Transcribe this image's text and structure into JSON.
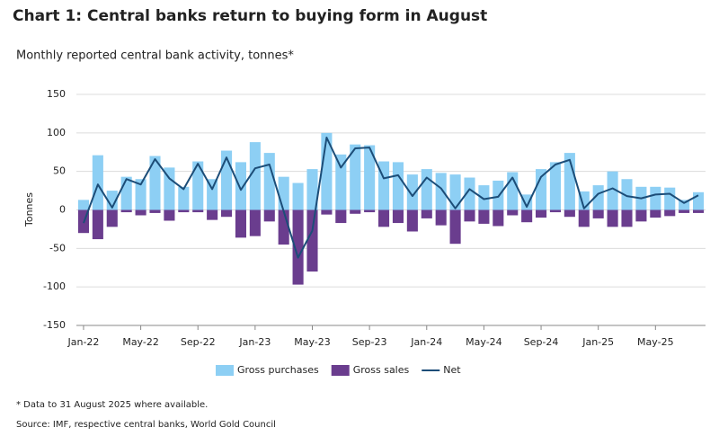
{
  "chart_data": {
    "type": "bar",
    "title": "Chart 1: Central banks return to buying form in August",
    "subtitle": "Monthly reported central bank activity, tonnes*",
    "y_label": "Tonnes",
    "notes": [
      "* Data to 31 August 2025 where available.",
      "Source: IMF, respective central banks, World Gold Council"
    ],
    "categories": [
      "Jan-22",
      null,
      null,
      null,
      "May-22",
      null,
      null,
      null,
      "Sep-22",
      null,
      null,
      null,
      "Jan-23",
      null,
      null,
      null,
      "May-23",
      null,
      null,
      null,
      "Sep-23",
      null,
      null,
      null,
      "Jan-24",
      null,
      null,
      null,
      "May-24",
      null,
      null,
      null,
      "Sep-24",
      null,
      null,
      null,
      "Jan-25",
      null,
      null,
      null,
      "May-25",
      null,
      null,
      null
    ],
    "series": [
      {
        "name": "Gross purchases",
        "color": "#8dcff4",
        "values": [
          13,
          71,
          25,
          43,
          40,
          70,
          55,
          30,
          63,
          40,
          77,
          62,
          88,
          74,
          43,
          35,
          53,
          100,
          72,
          85,
          84,
          63,
          62,
          46,
          53,
          48,
          46,
          42,
          32,
          38,
          49,
          20,
          53,
          62,
          74,
          24,
          32,
          50,
          40,
          30,
          30,
          29,
          13,
          23
        ]
      },
      {
        "name": "Gross sales",
        "color": "#6a3d8e",
        "values": [
          -30,
          -38,
          -22,
          -3,
          -7,
          -4,
          -14,
          -3,
          -3,
          -13,
          -9,
          -36,
          -34,
          -15,
          -45,
          -97,
          -80,
          -6,
          -17,
          -5,
          -3,
          -22,
          -17,
          -28,
          -11,
          -20,
          -44,
          -15,
          -18,
          -21,
          -7,
          -16,
          -10,
          -3,
          -9,
          -22,
          -11,
          -22,
          -22,
          -15,
          -10,
          -8,
          -4,
          -4
        ]
      },
      {
        "name": "Net",
        "color": "#1c4d78",
        "values": [
          -17,
          33,
          3,
          40,
          33,
          66,
          41,
          27,
          60,
          27,
          68,
          26,
          54,
          59,
          -2,
          -62,
          -27,
          94,
          55,
          80,
          81,
          41,
          45,
          18,
          42,
          28,
          2,
          27,
          14,
          17,
          42,
          4,
          43,
          59,
          65,
          2,
          21,
          28,
          18,
          15,
          20,
          21,
          9,
          19
        ]
      }
    ],
    "ylim": [
      -150,
      150
    ],
    "yticks": [
      -150,
      -100,
      -50,
      0,
      50,
      100,
      150
    ],
    "grid": true
  }
}
